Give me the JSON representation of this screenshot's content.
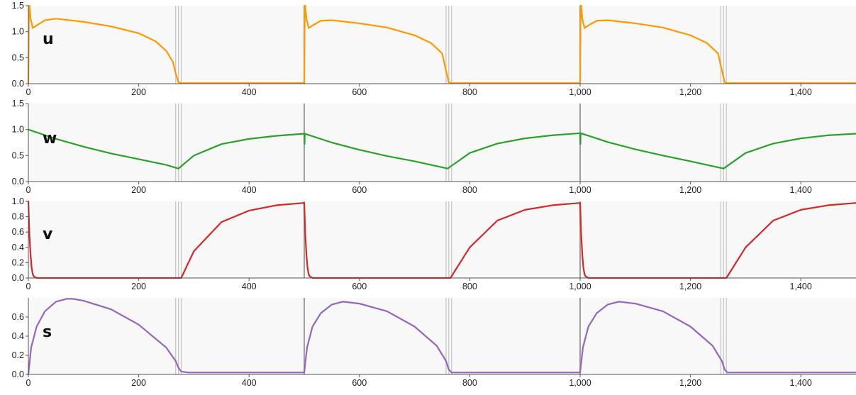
{
  "chart_data": [
    {
      "type": "line",
      "panel_label": "u",
      "color": "#ff9900",
      "xlim": [
        0,
        1500
      ],
      "ylim": [
        0,
        1.5
      ],
      "x_ticks": [
        0,
        200,
        400,
        600,
        800,
        1000,
        1200,
        1400
      ],
      "x_tick_labels": [
        "0",
        "200",
        "400",
        "600",
        "800",
        "1,000",
        "1,200",
        "1,400"
      ],
      "y_ticks": [
        0,
        0.5,
        1,
        1.5
      ],
      "y_tick_labels": [
        "0.0",
        "0.5",
        "1.0",
        "1.5"
      ],
      "vlines": [
        267,
        272,
        277,
        500,
        757,
        762,
        767,
        1000,
        1255,
        1260,
        1265
      ],
      "x": [
        0,
        1,
        2,
        4,
        8,
        15,
        30,
        50,
        100,
        150,
        200,
        230,
        250,
        262,
        267,
        272,
        277,
        300,
        350,
        400,
        450,
        499.5,
        500,
        501,
        502,
        504,
        508,
        515,
        530,
        550,
        600,
        650,
        700,
        730,
        750,
        757,
        762,
        767,
        800,
        850,
        900,
        950,
        999.5,
        1000,
        1001,
        1002,
        1004,
        1008,
        1015,
        1030,
        1050,
        1100,
        1150,
        1200,
        1230,
        1250,
        1257,
        1262,
        1267,
        1300,
        1350,
        1400,
        1450,
        1500
      ],
      "y": [
        0,
        1.6,
        1.5,
        1.25,
        1.07,
        1.12,
        1.22,
        1.25,
        1.19,
        1.1,
        0.97,
        0.82,
        0.63,
        0.42,
        0.2,
        0.03,
        0.01,
        0.01,
        0.01,
        0.01,
        0.01,
        0.01,
        0,
        1.6,
        1.5,
        1.25,
        1.07,
        1.12,
        1.21,
        1.22,
        1.16,
        1.08,
        0.93,
        0.78,
        0.58,
        0.25,
        0.03,
        0.01,
        0.01,
        0.01,
        0.01,
        0.01,
        0.01,
        0,
        1.6,
        1.5,
        1.25,
        1.07,
        1.12,
        1.21,
        1.22,
        1.16,
        1.08,
        0.93,
        0.78,
        0.58,
        0.25,
        0.03,
        0.01,
        0.01,
        0.01,
        0.01,
        0.01,
        0.01
      ]
    },
    {
      "type": "line",
      "panel_label": "w",
      "color": "#2ca02c",
      "xlim": [
        0,
        1500
      ],
      "ylim": [
        0,
        1.5
      ],
      "x_ticks": [
        0,
        200,
        400,
        600,
        800,
        1000,
        1200,
        1400
      ],
      "x_tick_labels": [
        "0",
        "200",
        "400",
        "600",
        "800",
        "1,000",
        "1,200",
        "1,400"
      ],
      "y_ticks": [
        0,
        0.5,
        1,
        1.5
      ],
      "y_tick_labels": [
        "0.0",
        "0.5",
        "1.0",
        "1.5"
      ],
      "vlines": [
        267,
        272,
        277,
        500,
        757,
        762,
        767,
        1000,
        1255,
        1260,
        1265
      ],
      "x": [
        0,
        50,
        100,
        150,
        200,
        250,
        272,
        300,
        350,
        400,
        450,
        500,
        500.5,
        501,
        550,
        600,
        650,
        700,
        760,
        800,
        850,
        900,
        950,
        1000,
        1000.5,
        1001,
        1050,
        1100,
        1150,
        1200,
        1260,
        1300,
        1350,
        1400,
        1450,
        1500
      ],
      "y": [
        1.0,
        0.82,
        0.67,
        0.54,
        0.43,
        0.32,
        0.25,
        0.5,
        0.72,
        0.82,
        0.88,
        0.92,
        0.72,
        0.92,
        0.75,
        0.61,
        0.49,
        0.39,
        0.25,
        0.55,
        0.73,
        0.83,
        0.89,
        0.93,
        0.72,
        0.93,
        0.76,
        0.62,
        0.5,
        0.39,
        0.25,
        0.55,
        0.73,
        0.83,
        0.89,
        0.92
      ]
    },
    {
      "type": "line",
      "panel_label": "v",
      "color": "#d62728",
      "xlim": [
        0,
        1500
      ],
      "ylim": [
        0,
        1.0
      ],
      "x_ticks": [
        0,
        200,
        400,
        600,
        800,
        1000,
        1200,
        1400
      ],
      "x_tick_labels": [
        "0",
        "200",
        "400",
        "600",
        "800",
        "1,000",
        "1,200",
        "1,400"
      ],
      "y_ticks": [
        0,
        0.2,
        0.4,
        0.6,
        0.8,
        1.0
      ],
      "y_tick_labels": [
        "0.0",
        "0.2",
        "0.4",
        "0.6",
        "0.8",
        "1.0"
      ],
      "vlines": [
        267,
        272,
        277,
        500,
        757,
        762,
        767,
        1000,
        1255,
        1260,
        1265
      ],
      "x": [
        0,
        2,
        4,
        6,
        8,
        10,
        15,
        277,
        300,
        350,
        400,
        450,
        499.5,
        500,
        502,
        504,
        506,
        508,
        510,
        515,
        765,
        800,
        850,
        900,
        950,
        999.5,
        1000,
        1002,
        1004,
        1006,
        1008,
        1010,
        1015,
        1265,
        1300,
        1350,
        1400,
        1450,
        1500
      ],
      "y": [
        1.0,
        0.55,
        0.3,
        0.13,
        0.05,
        0.02,
        0.0,
        0.0,
        0.35,
        0.73,
        0.88,
        0.95,
        0.98,
        0.98,
        0.55,
        0.3,
        0.13,
        0.05,
        0.02,
        0.0,
        0.0,
        0.4,
        0.75,
        0.89,
        0.95,
        0.98,
        0.98,
        0.55,
        0.3,
        0.13,
        0.05,
        0.02,
        0.0,
        0.0,
        0.4,
        0.75,
        0.89,
        0.95,
        0.98
      ]
    },
    {
      "type": "line",
      "panel_label": "s",
      "color": "#9467bd",
      "xlim": [
        0,
        1500
      ],
      "ylim": [
        0,
        0.8
      ],
      "x_ticks": [
        0,
        200,
        400,
        600,
        800,
        1000,
        1200,
        1400
      ],
      "x_tick_labels": [
        "0",
        "200",
        "400",
        "600",
        "800",
        "1,000",
        "1,200",
        "1,400"
      ],
      "y_ticks": [
        0,
        0.2,
        0.4,
        0.6
      ],
      "y_tick_labels": [
        "0.0",
        "0.2",
        "0.4",
        "0.6"
      ],
      "vlines": [
        267,
        272,
        277,
        500,
        757,
        762,
        767,
        1000,
        1255,
        1260,
        1265
      ],
      "x": [
        0,
        5,
        15,
        30,
        50,
        70,
        80,
        100,
        150,
        200,
        250,
        267,
        272,
        277,
        290,
        350,
        400,
        450,
        499,
        500,
        505,
        515,
        530,
        550,
        570,
        600,
        650,
        700,
        740,
        757,
        762,
        767,
        780,
        850,
        900,
        950,
        999,
        1000,
        1005,
        1015,
        1030,
        1050,
        1070,
        1100,
        1150,
        1200,
        1240,
        1257,
        1262,
        1267,
        1280,
        1350,
        1400,
        1450,
        1500
      ],
      "y": [
        0.0,
        0.28,
        0.5,
        0.66,
        0.76,
        0.79,
        0.79,
        0.77,
        0.68,
        0.52,
        0.28,
        0.14,
        0.07,
        0.03,
        0.02,
        0.02,
        0.02,
        0.02,
        0.02,
        0.02,
        0.28,
        0.5,
        0.64,
        0.73,
        0.76,
        0.74,
        0.66,
        0.5,
        0.3,
        0.14,
        0.05,
        0.02,
        0.02,
        0.02,
        0.02,
        0.02,
        0.02,
        0.02,
        0.28,
        0.5,
        0.64,
        0.73,
        0.76,
        0.74,
        0.66,
        0.5,
        0.3,
        0.14,
        0.05,
        0.02,
        0.02,
        0.02,
        0.02,
        0.02,
        0.02
      ]
    }
  ]
}
